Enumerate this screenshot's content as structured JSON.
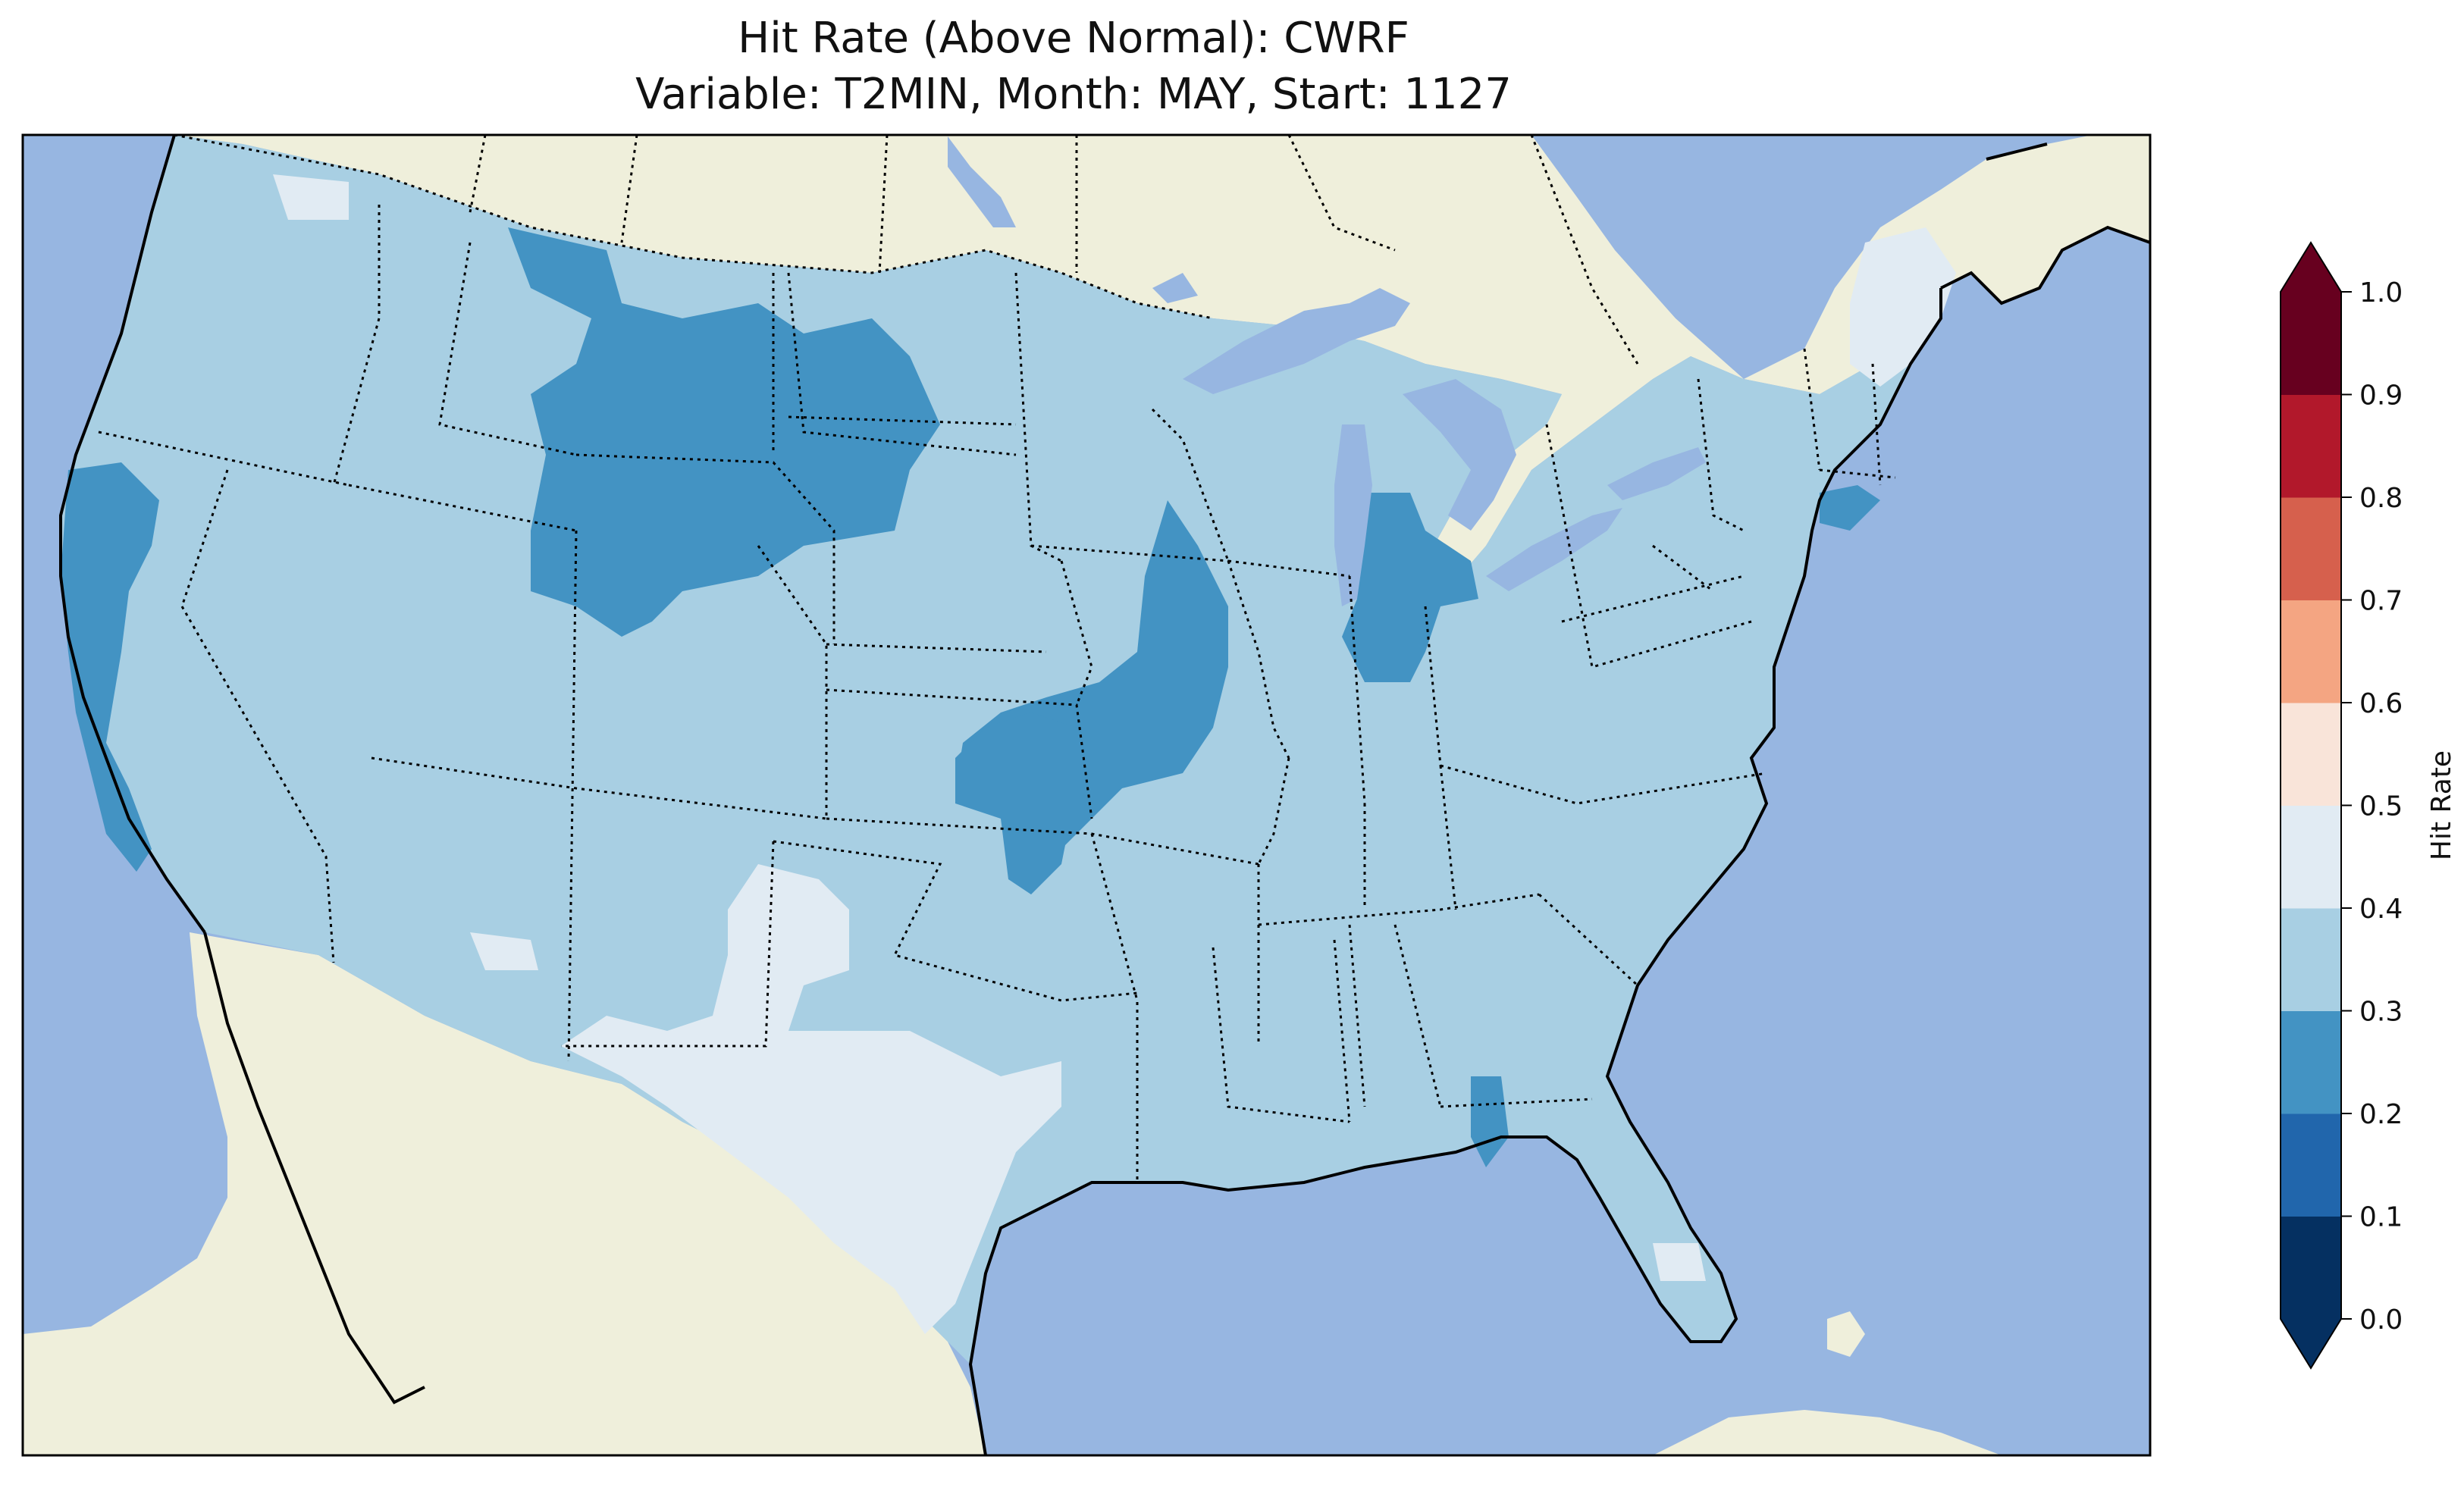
{
  "title": {
    "line1": "Hit Rate (Above Normal): CWRF",
    "line2": "Variable: T2MIN, Month: MAY, Start: 1127"
  },
  "colors": {
    "ocean": "#97b6e1",
    "land": "#efefdb",
    "lakes": "#97b6e1"
  },
  "colorbar": {
    "label": "Hit Rate",
    "ticks": [
      "0.0",
      "0.1",
      "0.2",
      "0.3",
      "0.4",
      "0.5",
      "0.6",
      "0.7",
      "0.8",
      "0.9",
      "1.0"
    ],
    "bins": [
      {
        "range": [
          0.0,
          0.1
        ],
        "color": "#053061"
      },
      {
        "range": [
          0.1,
          0.2
        ],
        "color": "#2166ac"
      },
      {
        "range": [
          0.2,
          0.3
        ],
        "color": "#4393c3"
      },
      {
        "range": [
          0.3,
          0.4
        ],
        "color": "#a8cfe3"
      },
      {
        "range": [
          0.4,
          0.5
        ],
        "color": "#e1ebf3"
      },
      {
        "range": [
          0.5,
          0.6
        ],
        "color": "#f9e4d9"
      },
      {
        "range": [
          0.6,
          0.7
        ],
        "color": "#f4a582"
      },
      {
        "range": [
          0.7,
          0.8
        ],
        "color": "#d6604d"
      },
      {
        "range": [
          0.8,
          0.9
        ],
        "color": "#b2182b"
      },
      {
        "range": [
          0.9,
          1.0
        ],
        "color": "#67001f"
      }
    ],
    "extend": "both"
  },
  "chart_data": {
    "type": "heatmap",
    "title": "Hit Rate (Above Normal): CWRF",
    "subtitle": "Variable: T2MIN, Month: MAY, Start: 1127",
    "colorbar_label": "Hit Rate",
    "vmin": 0.0,
    "vmax": 1.0,
    "levels": [
      0.0,
      0.1,
      0.2,
      0.3,
      0.4,
      0.5,
      0.6,
      0.7,
      0.8,
      0.9,
      1.0
    ],
    "dominant_value_range": [
      0.3,
      0.4
    ],
    "regions": [
      {
        "area": "Northern Plains / Montana-Wyoming-Dakotas",
        "range": [
          0.2,
          0.3
        ]
      },
      {
        "area": "Iowa-Missouri-Kansas corridor",
        "range": [
          0.2,
          0.3
        ]
      },
      {
        "area": "Coastal California",
        "range": [
          0.2,
          0.3
        ]
      },
      {
        "area": "Michigan-Indiana",
        "range": [
          0.2,
          0.3
        ]
      },
      {
        "area": "Florida Panhandle",
        "range": [
          0.2,
          0.3
        ]
      },
      {
        "area": "Texas / New Mexico",
        "range": [
          0.4,
          0.5
        ]
      },
      {
        "area": "Maine",
        "range": [
          0.4,
          0.5
        ]
      },
      {
        "area": "Remaining CONUS",
        "range": [
          0.3,
          0.4
        ]
      }
    ]
  }
}
